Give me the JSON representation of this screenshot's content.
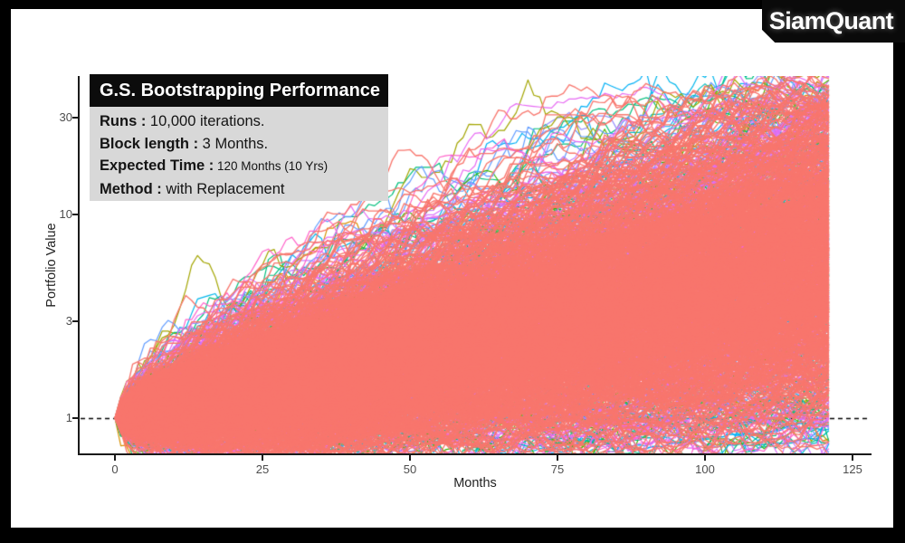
{
  "logo": {
    "text": "SiamQuant"
  },
  "infobox": {
    "title": "G.S. Bootstrapping Performance",
    "rows": [
      {
        "label": "Runs :",
        "value": "10,000 iterations.",
        "small": false
      },
      {
        "label": "Block length :",
        "value": "3 Months.",
        "small": false
      },
      {
        "label": "Expected Time :",
        "value": "120 Months (10 Yrs)",
        "small": true
      },
      {
        "label": "Method :",
        "value": "with Replacement",
        "small": false
      }
    ]
  },
  "chart_data": {
    "type": "line",
    "subtype": "monte-carlo-bootstrap-spaghetti",
    "title": "G.S. Bootstrapping Performance",
    "xlabel": "Months",
    "ylabel": "Portfolio Value",
    "x_ticks": [
      0,
      25,
      50,
      75,
      100,
      125
    ],
    "y_ticks": [
      1,
      3,
      10,
      30
    ],
    "y_scale": "log10",
    "x_range": [
      0,
      121
    ],
    "start_value": 1,
    "runs": "10,000",
    "reference_line": {
      "value": 1,
      "style": "dashed",
      "color": "#000000"
    },
    "grid": false,
    "legend": false,
    "envelope_by_month": {
      "months": [
        0,
        25,
        50,
        75,
        100,
        120
      ],
      "upper_extreme": [
        1.0,
        4.7,
        9.0,
        15.0,
        24.0,
        38.0
      ],
      "upper_mass": [
        1.0,
        3.0,
        5.5,
        9.0,
        14.0,
        20.0
      ],
      "median": [
        1.0,
        1.6,
        2.6,
        4.0,
        5.5,
        6.7
      ],
      "lower_mass": [
        1.0,
        1.02,
        1.08,
        1.12,
        1.18,
        1.25
      ],
      "lower_extreme": [
        1.0,
        0.86,
        0.82,
        0.84,
        0.86,
        0.88
      ]
    },
    "colors": {
      "axis": "#1a1a1a",
      "tick_label": "#4d4d4d",
      "axis_title": "#222222",
      "mass": "#F8766D",
      "halo": [
        "#E76BF3",
        "#DB72FB",
        "#F265E8",
        "#FF61C9"
      ],
      "fringe": [
        "#00B0F6",
        "#00BFC4",
        "#00BF7D",
        "#39B600",
        "#A3A500",
        "#D89000",
        "#9590FF",
        "#619CFF",
        "#53B400",
        "#C77CFF",
        "#00B6EB"
      ],
      "low_liners": [
        "#B79F00",
        "#00B0F6",
        "#00BFC4",
        "#A3A500"
      ]
    },
    "render_params": {
      "seed": 1337,
      "n_low": 8,
      "n_fringe": 280,
      "n_halo": 260,
      "n_mass": 820,
      "monthly_drift": 0.0185,
      "drift_spread": 0.0045,
      "monthly_vol": 0.05,
      "vol_spread": 0.03,
      "ar1": 0.25,
      "flat_prob": 0.15,
      "soft_cap_log": 3.45,
      "soft_floor_log": -0.25
    }
  }
}
